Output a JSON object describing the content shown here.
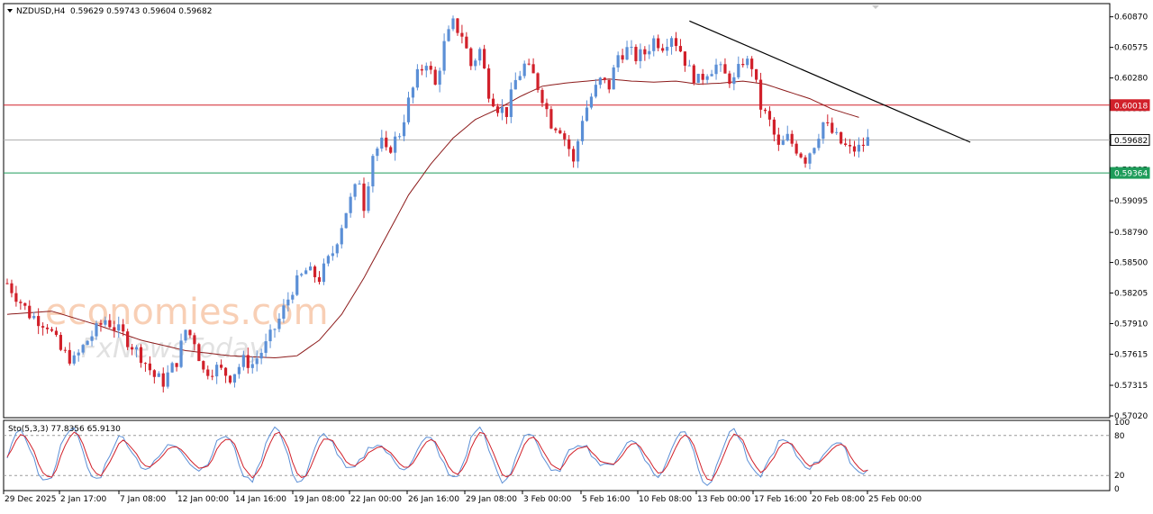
{
  "colors": {
    "bull": "#5b8fd6",
    "bear": "#d1202a",
    "ma": "#8c1a1a",
    "trendline": "#000000",
    "resistance": "#d1202a",
    "support": "#1e9c5a",
    "current_price": "#b0b0b0",
    "stoch_main": "#5b8fd6",
    "stoch_signal": "#d1202a",
    "watermark": "#f2a878"
  },
  "header": {
    "symbol": "NZDUSD,H4",
    "ohlc": "0.59629 0.59743 0.59604 0.59682"
  },
  "stochastic": {
    "label": "Sto(5,3,3) 77.8356 65.9130",
    "scale": [
      "100",
      "80",
      "20",
      "0"
    ]
  },
  "watermark": {
    "brand": "economies.com",
    "sub": "FxNewsToday"
  },
  "price_labels": {
    "resistance": "0.60018",
    "current": "0.59682",
    "support": "0.59364"
  },
  "chart_data": {
    "type": "candlestick",
    "ylim": [
      0.5702,
      0.6098
    ],
    "y_ticks": [
      "0.60870",
      "0.60575",
      "0.60280",
      "0.59985",
      "0.59690",
      "0.59395",
      "0.59095",
      "0.58790",
      "0.58500",
      "0.58205",
      "0.57910",
      "0.57615",
      "0.57315",
      "0.57020"
    ],
    "x_ticks": [
      "29 Dec 2025",
      "2 Jan 17:00",
      "7 Jan 08:00",
      "12 Jan 00:00",
      "14 Jan 16:00",
      "19 Jan 08:00",
      "22 Jan 00:00",
      "26 Jan 16:00",
      "29 Jan 08:00",
      "3 Feb 00:00",
      "5 Feb 16:00",
      "10 Feb 08:00",
      "13 Feb 00:00",
      "17 Feb 16:00",
      "20 Feb 08:00",
      "25 Feb 00:00"
    ],
    "horizontal_levels": {
      "resistance": 0.60018,
      "current": 0.59682,
      "support": 0.59364
    },
    "trendline": [
      [
        0.6083
      ],
      [
        0.5966
      ]
    ],
    "close_path": [
      [
        0,
        0.583
      ],
      [
        5,
        0.58
      ],
      [
        9,
        0.579
      ],
      [
        12,
        0.5765
      ],
      [
        15,
        0.5755
      ],
      [
        18,
        0.5775
      ],
      [
        22,
        0.5795
      ],
      [
        26,
        0.578
      ],
      [
        30,
        0.576
      ],
      [
        33,
        0.574
      ],
      [
        35,
        0.5735
      ],
      [
        38,
        0.5755
      ],
      [
        40,
        0.5785
      ],
      [
        42,
        0.5775
      ],
      [
        44,
        0.5745
      ],
      [
        47,
        0.5748
      ],
      [
        50,
        0.574
      ],
      [
        53,
        0.5755
      ],
      [
        55,
        0.5752
      ],
      [
        58,
        0.577
      ],
      [
        61,
        0.5795
      ],
      [
        64,
        0.5825
      ],
      [
        67,
        0.5842
      ],
      [
        70,
        0.5835
      ],
      [
        73,
        0.586
      ],
      [
        76,
        0.59
      ],
      [
        79,
        0.593
      ],
      [
        80,
        0.5905
      ],
      [
        82,
        0.5955
      ],
      [
        84,
        0.5965
      ],
      [
        85,
        0.5955
      ],
      [
        88,
        0.5975
      ],
      [
        90,
        0.6005
      ],
      [
        92,
        0.603
      ],
      [
        94,
        0.6045
      ],
      [
        96,
        0.602
      ],
      [
        98,
        0.606
      ],
      [
        100,
        0.608
      ],
      [
        102,
        0.607
      ],
      [
        104,
        0.604
      ],
      [
        106,
        0.6055
      ],
      [
        108,
        0.6015
      ],
      [
        110,
        0.6
      ],
      [
        112,
        0.5995
      ],
      [
        114,
        0.6025
      ],
      [
        116,
        0.604
      ],
      [
        118,
        0.603
      ],
      [
        120,
        0.601
      ],
      [
        122,
        0.5985
      ],
      [
        124,
        0.598
      ],
      [
        126,
        0.596
      ],
      [
        127,
        0.5945
      ],
      [
        129,
        0.599
      ],
      [
        131,
        0.601
      ],
      [
        133,
        0.6025
      ],
      [
        135,
        0.602
      ],
      [
        137,
        0.605
      ],
      [
        139,
        0.6055
      ],
      [
        141,
        0.6048
      ],
      [
        143,
        0.6052
      ],
      [
        145,
        0.6065
      ],
      [
        147,
        0.606
      ],
      [
        149,
        0.607
      ],
      [
        151,
        0.6055
      ],
      [
        153,
        0.6035
      ],
      [
        155,
        0.6025
      ],
      [
        157,
        0.6035
      ],
      [
        159,
        0.604
      ],
      [
        161,
        0.603
      ],
      [
        163,
        0.6025
      ],
      [
        165,
        0.6045
      ],
      [
        167,
        0.604
      ],
      [
        169,
        0.6
      ],
      [
        171,
        0.5985
      ],
      [
        173,
        0.596
      ],
      [
        175,
        0.597
      ],
      [
        177,
        0.596
      ],
      [
        179,
        0.595
      ],
      [
        181,
        0.5965
      ],
      [
        183,
        0.5985
      ],
      [
        185,
        0.5975
      ],
      [
        187,
        0.5965
      ],
      [
        189,
        0.5958
      ],
      [
        191,
        0.596
      ],
      [
        193,
        0.5968
      ]
    ],
    "moving_average": [
      [
        0,
        0.58
      ],
      [
        10,
        0.5803
      ],
      [
        20,
        0.579
      ],
      [
        30,
        0.5775
      ],
      [
        40,
        0.5765
      ],
      [
        50,
        0.576
      ],
      [
        60,
        0.5758
      ],
      [
        65,
        0.576
      ],
      [
        70,
        0.5775
      ],
      [
        75,
        0.58
      ],
      [
        80,
        0.5835
      ],
      [
        85,
        0.5875
      ],
      [
        90,
        0.5915
      ],
      [
        95,
        0.5945
      ],
      [
        100,
        0.597
      ],
      [
        105,
        0.5988
      ],
      [
        110,
        0.5998
      ],
      [
        115,
        0.601
      ],
      [
        120,
        0.602
      ],
      [
        125,
        0.6023
      ],
      [
        130,
        0.6025
      ],
      [
        135,
        0.6027
      ],
      [
        140,
        0.6025
      ],
      [
        145,
        0.6024
      ],
      [
        150,
        0.6025
      ],
      [
        155,
        0.6022
      ],
      [
        160,
        0.6023
      ],
      [
        165,
        0.6025
      ],
      [
        170,
        0.6022
      ],
      [
        175,
        0.6015
      ],
      [
        180,
        0.6008
      ],
      [
        185,
        0.5998
      ],
      [
        191,
        0.599
      ]
    ]
  }
}
